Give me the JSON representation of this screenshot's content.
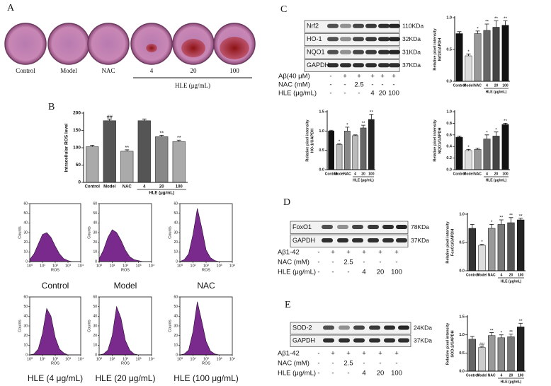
{
  "panels": [
    "A",
    "B",
    "C",
    "D",
    "E"
  ],
  "dishes": {
    "labels": [
      "Control",
      "Model",
      "NAC",
      "4",
      "20",
      "100"
    ],
    "group_label": "HLE (μg/mL)"
  },
  "blots": [
    {
      "rows": [
        {
          "label": "Nrf2",
          "kda": "110KDa"
        },
        {
          "label": "HO-1",
          "kda": "32KDa"
        },
        {
          "label": "NQO1",
          "kda": "31KDa"
        },
        {
          "label": "GAPDH",
          "kda": "37KDa"
        }
      ],
      "treatments": [
        {
          "label": "Aβ(40 μM)",
          "cells": [
            "-",
            "+",
            "+",
            "+",
            "+",
            "+"
          ]
        },
        {
          "label": "NAC (mM)",
          "cells": [
            "-",
            "-",
            "2.5",
            "-",
            "-",
            "-"
          ]
        },
        {
          "label": "HLE (μg/mL)",
          "cells": [
            "-",
            "-",
            "-",
            "4",
            "20",
            "100"
          ]
        }
      ]
    },
    {
      "rows": [
        {
          "label": "FoxO1",
          "kda": "78KDa"
        },
        {
          "label": "GAPDH",
          "kda": "37KDa"
        }
      ],
      "treatments": [
        {
          "label": "Aβ1-42",
          "cells": [
            "-",
            "+",
            "+",
            "+",
            "+",
            "+"
          ]
        },
        {
          "label": "NAC (mM)",
          "cells": [
            "-",
            "-",
            "2.5",
            "-",
            "-",
            "-"
          ]
        },
        {
          "label": "HLE (μg/mL)",
          "cells": [
            "-",
            "-",
            "-",
            "4",
            "20",
            "100"
          ]
        }
      ]
    },
    {
      "rows": [
        {
          "label": "SOD-2",
          "kda": "24KDa"
        },
        {
          "label": "GAPDH",
          "kda": "37KDa"
        }
      ],
      "treatments": [
        {
          "label": "Aβ1-42",
          "cells": [
            "-",
            "+",
            "+",
            "+",
            "+",
            "+"
          ]
        },
        {
          "label": "NAC (mM)",
          "cells": [
            "-",
            "-",
            "2.5",
            "-",
            "-",
            "-"
          ]
        },
        {
          "label": "HLE (μg/mL)",
          "cells": [
            "-",
            "-",
            "-",
            "4",
            "20",
            "100"
          ]
        }
      ]
    }
  ],
  "chart_data": [
    {
      "type": "bar",
      "ylabel": "Intracellular ROS level",
      "categories": [
        "Control",
        "Model",
        "NAC",
        "4",
        "20",
        "100"
      ],
      "group_label": "HLE (μg/mL)",
      "values": [
        103,
        178,
        90,
        178,
        132,
        118
      ],
      "errors": [
        4,
        5,
        4,
        5,
        4,
        4
      ],
      "annotations": [
        null,
        "##",
        "**",
        null,
        "**",
        "**"
      ],
      "colors": [
        "#aaaaaa",
        "#555555",
        "#aaaaaa",
        "#555555",
        "#888888",
        "#aaaaaa"
      ],
      "ylim": [
        0,
        200
      ],
      "yticks": [
        0,
        50,
        100,
        150,
        200
      ]
    },
    {
      "type": "area",
      "caption": "Control",
      "xlabel": "ROS",
      "ylabel": "Counts",
      "color": "#7a2a8c",
      "xlog": true,
      "x": [
        1,
        2.15,
        4.64,
        10,
        21.5,
        46.4,
        100,
        215,
        464,
        1000,
        2150,
        4640,
        10000
      ],
      "values": [
        2,
        8,
        18,
        28,
        30,
        25,
        16,
        8,
        3,
        1,
        0,
        0,
        0
      ],
      "xlim": [
        1,
        10000
      ],
      "xticks": [
        {
          "value": 1,
          "label": "10⁰"
        },
        {
          "value": 10,
          "label": "10¹"
        },
        {
          "value": 100,
          "label": "10²"
        },
        {
          "value": 1000,
          "label": "10³"
        },
        {
          "value": 10000,
          "label": "10⁴"
        }
      ],
      "ylim": [
        0,
        60
      ],
      "yticks": [
        0,
        10,
        20,
        30,
        40,
        50,
        60
      ]
    },
    {
      "type": "area",
      "caption": "Model",
      "xlabel": "ROS",
      "ylabel": "Counts",
      "color": "#7a2a8c",
      "xlog": true,
      "x": [
        1,
        2.15,
        4.64,
        10,
        21.5,
        46.4,
        100,
        215,
        464,
        1000,
        2150,
        4640,
        10000
      ],
      "values": [
        3,
        12,
        25,
        33,
        30,
        22,
        12,
        5,
        2,
        1,
        0,
        0,
        0
      ],
      "xlim": [
        1,
        10000
      ],
      "xticks": [
        {
          "value": 1,
          "label": "10⁰"
        },
        {
          "value": 10,
          "label": "10¹"
        },
        {
          "value": 100,
          "label": "10²"
        },
        {
          "value": 1000,
          "label": "10³"
        },
        {
          "value": 10000,
          "label": "10⁴"
        }
      ],
      "ylim": [
        0,
        60
      ],
      "yticks": [
        0,
        10,
        20,
        30,
        40,
        50,
        60
      ]
    },
    {
      "type": "area",
      "caption": "NAC",
      "xlabel": "ROS",
      "ylabel": "Counts",
      "color": "#7a2a8c",
      "xlog": true,
      "x": [
        1,
        2.15,
        4.64,
        10,
        21.5,
        46.4,
        100,
        215,
        464,
        1000,
        2150,
        4640,
        10000
      ],
      "values": [
        0,
        2,
        8,
        28,
        55,
        35,
        12,
        4,
        1,
        0,
        0,
        0,
        0
      ],
      "xlim": [
        1,
        10000
      ],
      "xticks": [
        {
          "value": 1,
          "label": "10⁰"
        },
        {
          "value": 10,
          "label": "10¹"
        },
        {
          "value": 100,
          "label": "10²"
        },
        {
          "value": 1000,
          "label": "10³"
        },
        {
          "value": 10000,
          "label": "10⁴"
        }
      ],
      "ylim": [
        0,
        60
      ],
      "yticks": [
        0,
        10,
        20,
        30,
        40,
        50,
        60
      ]
    },
    {
      "type": "area",
      "caption": "HLE (4 μg/mL)",
      "xlabel": "ROS",
      "ylabel": "Counts",
      "color": "#7a2a8c",
      "xlog": true,
      "x": [
        1,
        2.15,
        4.64,
        10,
        21.5,
        46.4,
        100,
        215,
        464,
        1000,
        2150,
        4640,
        10000
      ],
      "values": [
        0,
        1,
        6,
        22,
        48,
        40,
        18,
        6,
        2,
        0,
        0,
        0,
        0
      ],
      "xlim": [
        1,
        10000
      ],
      "xticks": [
        {
          "value": 1,
          "label": "10⁰"
        },
        {
          "value": 10,
          "label": "10¹"
        },
        {
          "value": 100,
          "label": "10²"
        },
        {
          "value": 1000,
          "label": "10³"
        },
        {
          "value": 10000,
          "label": "10⁴"
        }
      ],
      "ylim": [
        0,
        60
      ],
      "yticks": [
        0,
        10,
        20,
        30,
        40,
        50,
        60
      ]
    },
    {
      "type": "area",
      "caption": "HLE (20 μg/mL)",
      "xlabel": "ROS",
      "ylabel": "Counts",
      "color": "#7a2a8c",
      "xlog": true,
      "x": [
        1,
        2.15,
        4.64,
        10,
        21.5,
        46.4,
        100,
        215,
        464,
        1000,
        2150,
        4640,
        10000
      ],
      "values": [
        0,
        1,
        5,
        20,
        50,
        38,
        15,
        5,
        1,
        0,
        0,
        0,
        0
      ],
      "xlim": [
        1,
        10000
      ],
      "xticks": [
        {
          "value": 1,
          "label": "10⁰"
        },
        {
          "value": 10,
          "label": "10¹"
        },
        {
          "value": 100,
          "label": "10²"
        },
        {
          "value": 1000,
          "label": "10³"
        },
        {
          "value": 10000,
          "label": "10⁴"
        }
      ],
      "ylim": [
        0,
        60
      ],
      "yticks": [
        0,
        10,
        20,
        30,
        40,
        50,
        60
      ]
    },
    {
      "type": "area",
      "caption": "HLE (100 μg/mL)",
      "xlabel": "ROS",
      "ylabel": "Counts",
      "color": "#7a2a8c",
      "xlog": true,
      "x": [
        1,
        2.15,
        4.64,
        10,
        21.5,
        46.4,
        100,
        215,
        464,
        1000,
        2150,
        4640,
        10000
      ],
      "values": [
        0,
        1,
        5,
        24,
        55,
        35,
        14,
        4,
        1,
        0,
        0,
        0,
        0
      ],
      "xlim": [
        1,
        10000
      ],
      "xticks": [
        {
          "value": 1,
          "label": "10⁰"
        },
        {
          "value": 10,
          "label": "10¹"
        },
        {
          "value": 100,
          "label": "10²"
        },
        {
          "value": 1000,
          "label": "10³"
        },
        {
          "value": 10000,
          "label": "10⁴"
        }
      ],
      "ylim": [
        0,
        60
      ],
      "yticks": [
        0,
        10,
        20,
        30,
        40,
        50,
        60
      ]
    },
    {
      "type": "bar",
      "ylabel": "Relative pixel intensity",
      "ylabel_sub": "Nrf2/GAPDH",
      "categories": [
        "Control",
        "Model",
        "NAC",
        "4",
        "20",
        "100"
      ],
      "group_label": "HLE (μg/mL)",
      "values": [
        0.75,
        0.4,
        0.75,
        0.8,
        0.85,
        0.88
      ],
      "errors": [
        0.03,
        0.03,
        0.04,
        0.1,
        0.1,
        0.07
      ],
      "annotations": [
        null,
        "*",
        "*",
        "**",
        "**",
        "**"
      ],
      "colors": [
        "#111111",
        "#dddddd",
        "#999999",
        "#666666",
        "#444444",
        "#111111"
      ],
      "ylim": [
        0,
        1
      ],
      "yticks": [
        {
          "value": 0,
          "label": "0.0"
        },
        0.5,
        {
          "value": 1,
          "label": "1.0"
        }
      ]
    },
    {
      "type": "bar",
      "ylabel": "Relative pixel intensity",
      "ylabel_sub": "HO-1/GAPDH",
      "categories": [
        "Control",
        "Model",
        "NAC",
        "4",
        "20",
        "100"
      ],
      "group_label": "HLE (μg/mL)",
      "values": [
        1.0,
        0.65,
        1.0,
        0.88,
        1.08,
        1.3
      ],
      "errors": [
        0.02,
        0.02,
        0.1,
        0.02,
        0.07,
        0.13
      ],
      "annotations": [
        null,
        "*",
        "*",
        null,
        "**",
        "**"
      ],
      "colors": [
        "#111111",
        "#bbbbbb",
        "#888888",
        "#bbbbbb",
        "#666666",
        "#222222"
      ],
      "ylim": [
        0,
        1.5
      ],
      "yticks": [
        {
          "value": 0,
          "label": "0.0"
        },
        0.5,
        {
          "value": 1,
          "label": "1.0"
        },
        1.5
      ]
    },
    {
      "type": "bar",
      "ylabel": "Relative pixel intensity",
      "ylabel_sub": "NQO1/GAPDH",
      "categories": [
        "Control",
        "Model",
        "NAC",
        "4",
        "20",
        "100"
      ],
      "group_label": "HLE (μg/mL)",
      "values": [
        0.56,
        0.33,
        0.35,
        0.53,
        0.58,
        0.78
      ],
      "errors": [
        0.02,
        0.02,
        0.02,
        0.07,
        0.07,
        0.02
      ],
      "annotations": [
        null,
        "*",
        null,
        "*",
        "*",
        "**"
      ],
      "colors": [
        "#111111",
        "#dddddd",
        "#999999",
        "#666666",
        "#444444",
        "#111111"
      ],
      "ylim": [
        0,
        1
      ],
      "yticks": [
        {
          "value": 0,
          "label": "0.0"
        },
        0.2,
        0.4,
        0.6,
        0.8,
        {
          "value": 1,
          "label": "1.0"
        }
      ]
    },
    {
      "type": "bar",
      "ylabel": "Relative pixel intensity",
      "ylabel_sub": "FoxO1/GAPDH",
      "categories": [
        "Control",
        "Model",
        "NAC",
        "4",
        "20",
        "100"
      ],
      "group_label": "HLE (μg/mL)",
      "values": [
        0.75,
        0.45,
        0.75,
        0.82,
        0.85,
        0.9
      ],
      "errors": [
        0.07,
        0.02,
        0.07,
        0.08,
        0.09,
        0.03
      ],
      "annotations": [
        null,
        "*",
        "*",
        "**",
        "**",
        "**"
      ],
      "colors": [
        "#333333",
        "#dddddd",
        "#999999",
        "#777777",
        "#555555",
        "#222222"
      ],
      "ylim": [
        0,
        1
      ],
      "yticks": [
        {
          "value": 0,
          "label": "0.0"
        },
        0.5,
        {
          "value": 1,
          "label": "1.0"
        }
      ]
    },
    {
      "type": "bar",
      "ylabel": "Relative pixel intensity",
      "ylabel_sub": "SOD-2/GAPDH",
      "categories": [
        "Control",
        "Model",
        "NAC",
        "4",
        "20",
        "100"
      ],
      "group_label": "HLE (μg/mL)",
      "values": [
        0.88,
        0.65,
        0.98,
        0.92,
        0.95,
        1.22
      ],
      "errors": [
        0.08,
        0.03,
        0.08,
        0.08,
        0.07,
        0.1
      ],
      "annotations": [
        null,
        "##",
        "**",
        "*",
        "**",
        "**"
      ],
      "colors": [
        "#666666",
        "#cccccc",
        "#999999",
        "#888888",
        "#777777",
        "#222222"
      ],
      "ylim": [
        0,
        1.5
      ],
      "yticks": [
        {
          "value": 0,
          "label": "0.0"
        },
        0.5,
        {
          "value": 1,
          "label": "1.0"
        },
        1.5
      ]
    }
  ]
}
